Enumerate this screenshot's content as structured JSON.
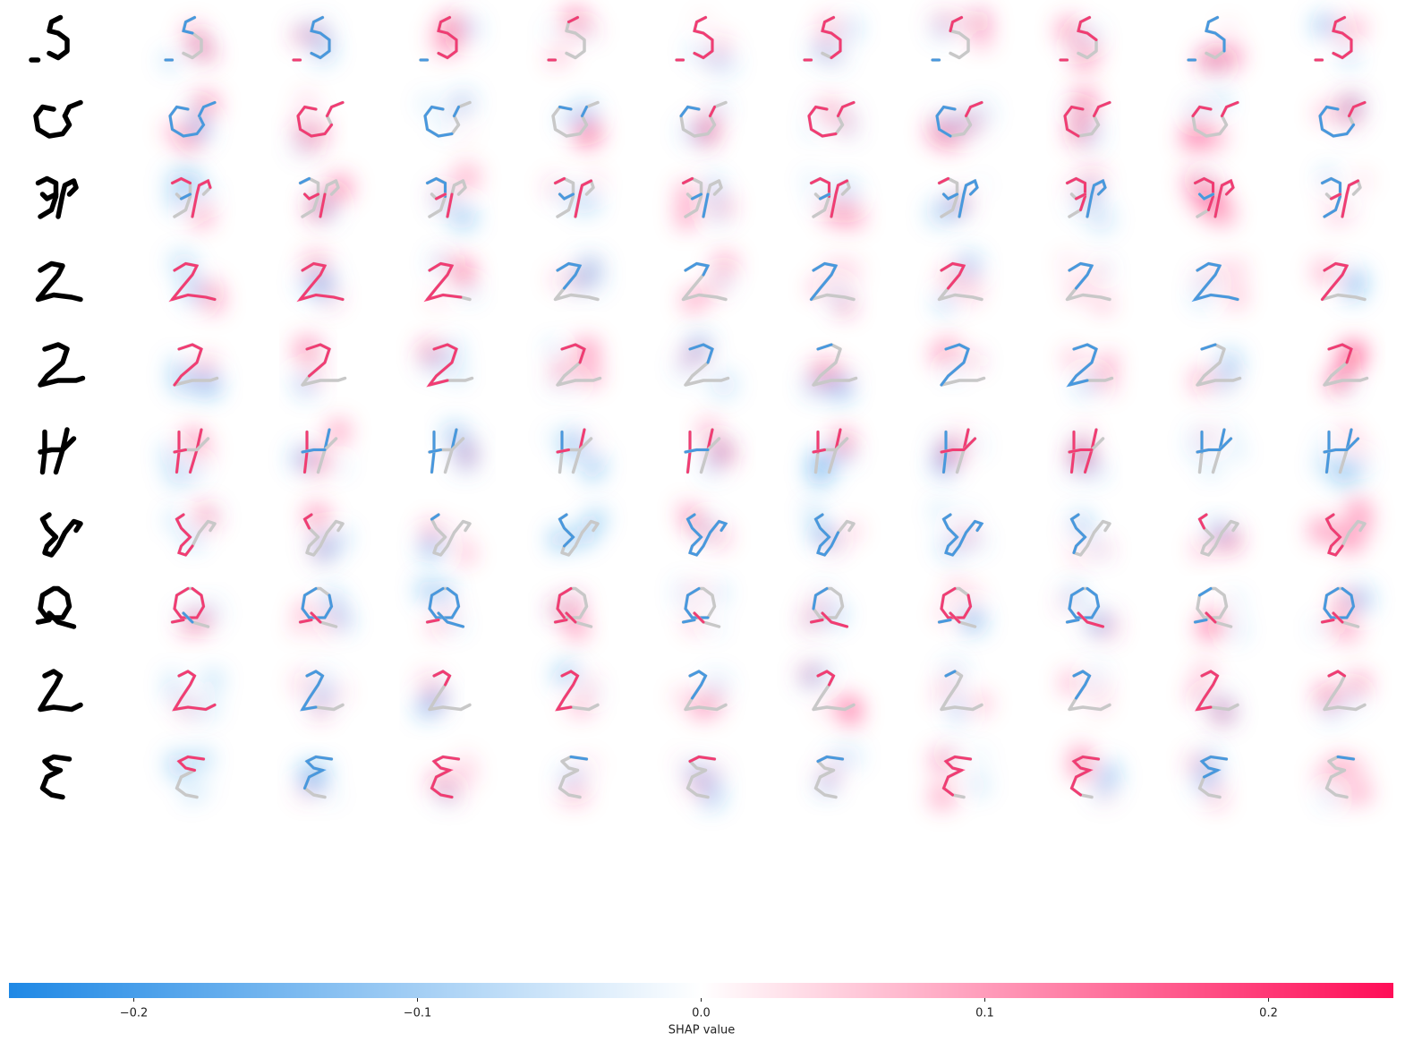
{
  "chart_data": {
    "type": "shap_image",
    "colorbar": {
      "label": "SHAP value",
      "clim": [
        -0.244,
        0.244
      ],
      "ticks": [
        {
          "value": -0.2,
          "label": "−0.2"
        },
        {
          "value": -0.1,
          "label": "−0.1"
        },
        {
          "value": 0,
          "label": "0.0"
        },
        0.1,
        0.2
      ],
      "colors": [
        "#1e88e5",
        "#ffffff",
        "#ff0d57"
      ]
    }
  }
}
